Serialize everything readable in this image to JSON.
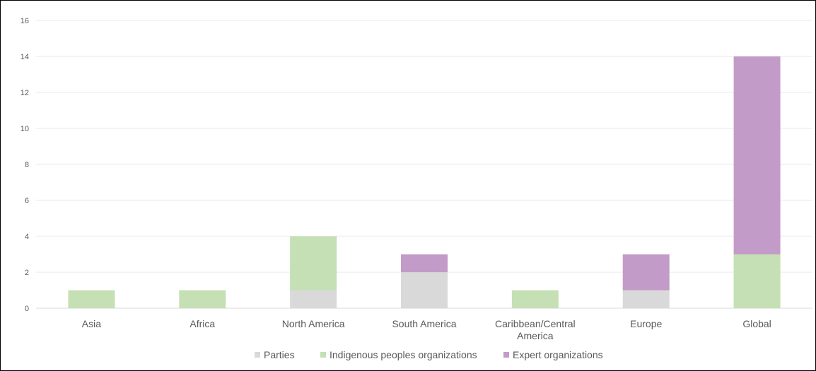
{
  "chart_data": {
    "type": "bar",
    "stacked": true,
    "title": "",
    "xlabel": "",
    "ylabel": "",
    "ylim": [
      0,
      16
    ],
    "yticks": [
      0,
      2,
      4,
      6,
      8,
      10,
      12,
      14,
      16
    ],
    "grid": true,
    "legend_position": "bottom",
    "categories": [
      "Asia",
      "Africa",
      "North America",
      "South America",
      "Caribbean/Central America",
      "Europe",
      "Global"
    ],
    "category_lines": [
      [
        "Asia"
      ],
      [
        "Africa"
      ],
      [
        "North America"
      ],
      [
        "South America"
      ],
      [
        "Caribbean/Central",
        "America"
      ],
      [
        "Europe"
      ],
      [
        "Global"
      ]
    ],
    "series": [
      {
        "name": "Parties",
        "color": "#d9d9d9",
        "values": [
          0,
          0,
          1,
          2,
          0,
          1,
          0
        ]
      },
      {
        "name": "Indigenous peoples organizations",
        "color": "#c5e0b4",
        "values": [
          1,
          1,
          3,
          0,
          1,
          0,
          3
        ]
      },
      {
        "name": "Expert organizations",
        "color": "#c39bc8",
        "values": [
          0,
          0,
          0,
          1,
          0,
          2,
          11
        ]
      }
    ]
  }
}
